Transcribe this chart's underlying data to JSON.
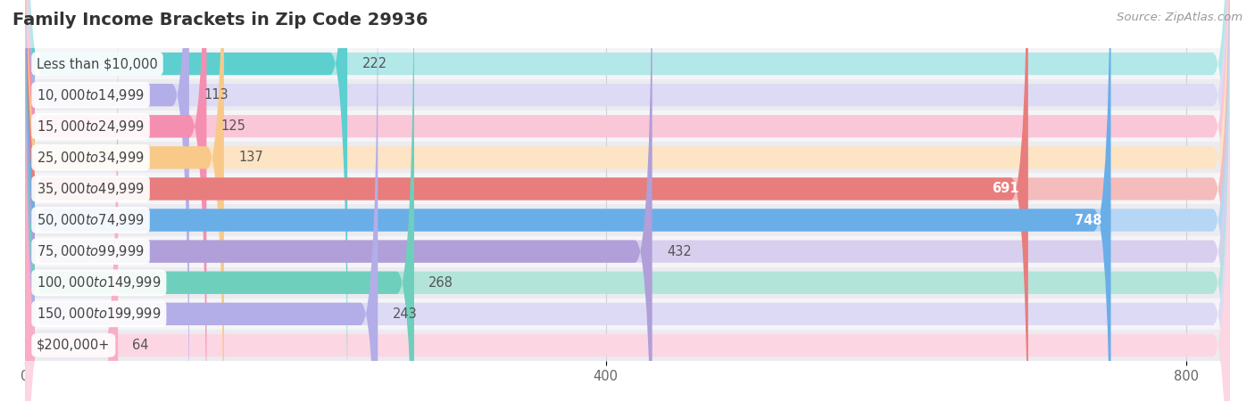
{
  "title": "Family Income Brackets in Zip Code 29936",
  "source": "Source: ZipAtlas.com",
  "categories": [
    "Less than $10,000",
    "$10,000 to $14,999",
    "$15,000 to $24,999",
    "$25,000 to $34,999",
    "$35,000 to $49,999",
    "$50,000 to $74,999",
    "$75,000 to $99,999",
    "$100,000 to $149,999",
    "$150,000 to $199,999",
    "$200,000+"
  ],
  "values": [
    222,
    113,
    125,
    137,
    691,
    748,
    432,
    268,
    243,
    64
  ],
  "bar_colors": [
    "#5ecfcf",
    "#b3aee8",
    "#f48fb1",
    "#f9c98a",
    "#e87d7d",
    "#6aaee8",
    "#b09fd8",
    "#6ecfbc",
    "#b3aee8",
    "#f9aec5"
  ],
  "light_bar_colors": [
    "#b2e8e8",
    "#dddaf5",
    "#fac7d8",
    "#fce4c4",
    "#f4bcbc",
    "#b5d6f4",
    "#d8cfee",
    "#b2e4da",
    "#dddaf5",
    "#fcd6e3"
  ],
  "background_color": "#ffffff",
  "row_bg_colors": [
    "#f5f5f8",
    "#ebebf0"
  ],
  "xlim": [
    0,
    830
  ],
  "xticks": [
    0,
    400,
    800
  ],
  "title_fontsize": 14,
  "label_fontsize": 10.5,
  "value_fontsize": 10.5,
  "source_fontsize": 9.5
}
